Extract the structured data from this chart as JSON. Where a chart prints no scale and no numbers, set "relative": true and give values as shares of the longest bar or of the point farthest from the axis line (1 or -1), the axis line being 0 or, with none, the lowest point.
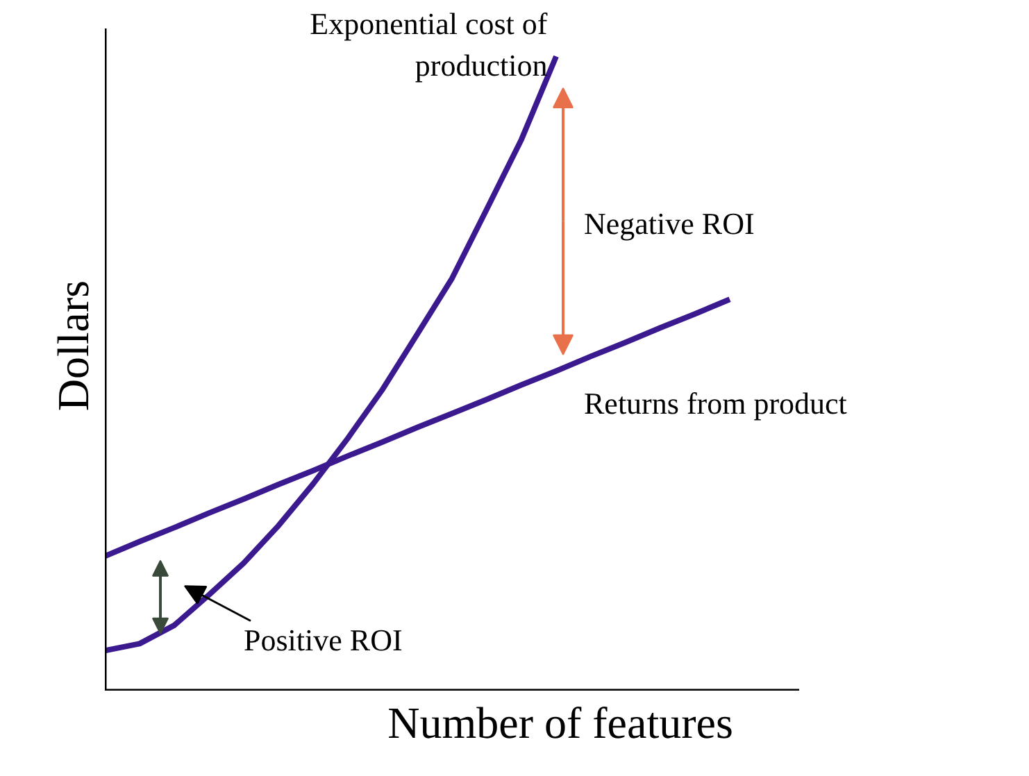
{
  "chart_data": {
    "type": "line",
    "relative": true,
    "xlabel": "Number of features",
    "ylabel": "Dollars",
    "categories": [
      null,
      null,
      null,
      null,
      null,
      null,
      null,
      null,
      null,
      null,
      null,
      null,
      null,
      null,
      null,
      null,
      null,
      null,
      null,
      null,
      null
    ],
    "series": [
      {
        "name": "Exponential cost of production",
        "color": "#3b1a8f",
        "values": [
          0.063,
          0.074,
          0.103,
          0.151,
          0.201,
          0.26,
          0.326,
          0.398,
          0.475,
          0.562,
          0.65,
          0.759,
          0.869,
          1.0,
          null,
          null,
          null,
          null,
          null,
          null,
          null
        ]
      },
      {
        "name": "Returns from product",
        "color": "#3b1a8f",
        "values": [
          0.212,
          0.235,
          0.257,
          0.28,
          0.302,
          0.325,
          0.347,
          0.37,
          0.392,
          0.415,
          0.437,
          0.459,
          0.482,
          0.504,
          0.527,
          0.549,
          0.572,
          0.594,
          0.617,
          null,
          null
        ]
      }
    ],
    "annotations": [
      "Negative ROI",
      "Positive ROI"
    ],
    "legend": false,
    "marker": "none",
    "line_style": "solid"
  }
}
